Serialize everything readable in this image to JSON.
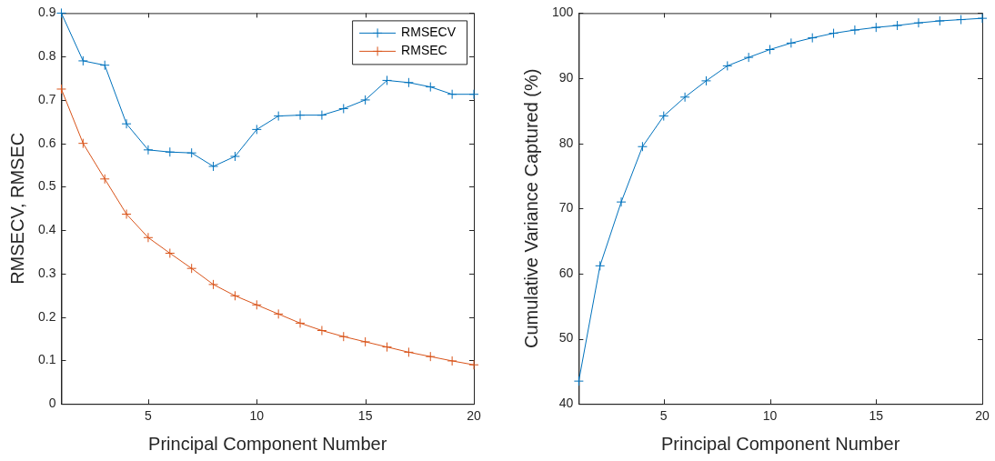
{
  "chart_data": [
    {
      "type": "line",
      "xlabel": "Principal Component Number",
      "ylabel": "RMSECV, RMSEC",
      "x": [
        1,
        2,
        3,
        4,
        5,
        6,
        7,
        8,
        9,
        10,
        11,
        12,
        13,
        14,
        15,
        16,
        17,
        18,
        19,
        20
      ],
      "xlim": [
        1,
        20
      ],
      "xticks": [
        5,
        10,
        15,
        20
      ],
      "ylim": [
        0,
        0.9
      ],
      "yticks": [
        0,
        0.1,
        0.2,
        0.3,
        0.4,
        0.5,
        0.6,
        0.7,
        0.8,
        0.9
      ],
      "marker": "cross",
      "grid": false,
      "legend": "top right",
      "series": [
        {
          "name": "RMSECV",
          "color": "#0072bd",
          "values": [
            0.9,
            0.79,
            0.78,
            0.645,
            0.585,
            0.58,
            0.578,
            0.547,
            0.57,
            0.632,
            0.663,
            0.665,
            0.665,
            0.68,
            0.7,
            0.745,
            0.74,
            0.73,
            0.713,
            0.713
          ]
        },
        {
          "name": "RMSEC",
          "color": "#d95319",
          "values": [
            0.725,
            0.6,
            0.518,
            0.437,
            0.383,
            0.347,
            0.312,
            0.275,
            0.249,
            0.228,
            0.207,
            0.186,
            0.169,
            0.155,
            0.143,
            0.131,
            0.119,
            0.109,
            0.099,
            0.09
          ]
        }
      ]
    },
    {
      "type": "line",
      "xlabel": "Principal Component Number",
      "ylabel": "Cumulative Variance Captured (%)",
      "x": [
        1,
        2,
        3,
        4,
        5,
        6,
        7,
        8,
        9,
        10,
        11,
        12,
        13,
        14,
        15,
        16,
        17,
        18,
        19,
        20
      ],
      "xlim": [
        1,
        20
      ],
      "xticks": [
        5,
        10,
        15,
        20
      ],
      "ylim": [
        40,
        100
      ],
      "yticks": [
        40,
        50,
        60,
        70,
        80,
        90,
        100
      ],
      "marker": "cross",
      "grid": false,
      "series": [
        {
          "color": "#0072bd",
          "values": [
            43.5,
            61.2,
            71,
            79.5,
            84.2,
            87.1,
            89.6,
            91.9,
            93.2,
            94.4,
            95.4,
            96.2,
            96.9,
            97.4,
            97.8,
            98.1,
            98.5,
            98.8,
            99.0,
            99.2
          ]
        }
      ]
    }
  ]
}
